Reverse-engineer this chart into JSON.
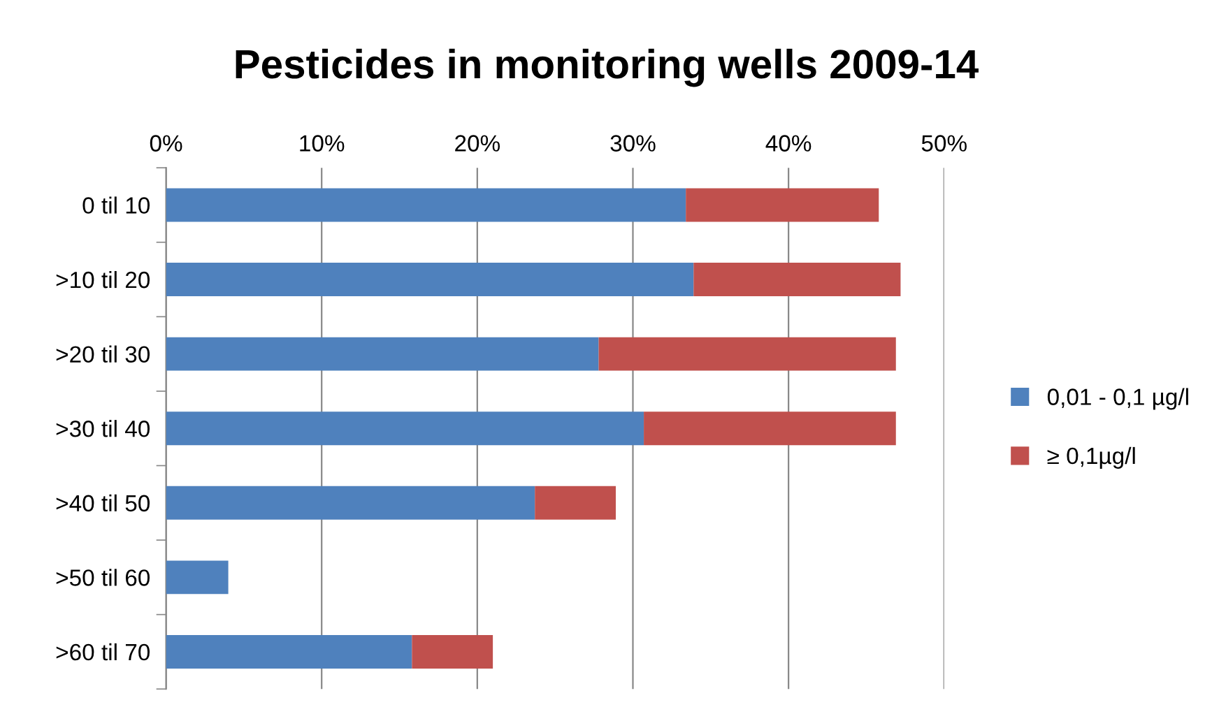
{
  "chart_data": {
    "type": "bar",
    "orientation": "horizontal",
    "stacked": true,
    "title": "Pesticides in monitoring wells 2009-14",
    "categories": [
      "0 til 10",
      ">10 til 20",
      ">20 til 30",
      ">30 til 40",
      ">40 til 50",
      ">50 til 60",
      ">60 til 70"
    ],
    "series": [
      {
        "name": "0,01 - 0,1 µg/l",
        "color": "#4f81bd",
        "values": [
          33.4,
          33.9,
          27.8,
          30.7,
          23.7,
          4.0,
          15.8
        ]
      },
      {
        "name": "≥ 0,1µg/l",
        "color": "#c0504d",
        "values": [
          12.4,
          13.3,
          19.1,
          16.2,
          5.2,
          null,
          5.2
        ]
      }
    ],
    "xlim": [
      0,
      50
    ],
    "xticks": [
      {
        "value": 0,
        "label": "0%"
      },
      {
        "value": 10,
        "label": "10%"
      },
      {
        "value": 20,
        "label": "20%"
      },
      {
        "value": 30,
        "label": "30%"
      },
      {
        "value": 40,
        "label": "40%"
      },
      {
        "value": 50,
        "label": "50%"
      }
    ],
    "grid": "x",
    "legend": "right"
  }
}
